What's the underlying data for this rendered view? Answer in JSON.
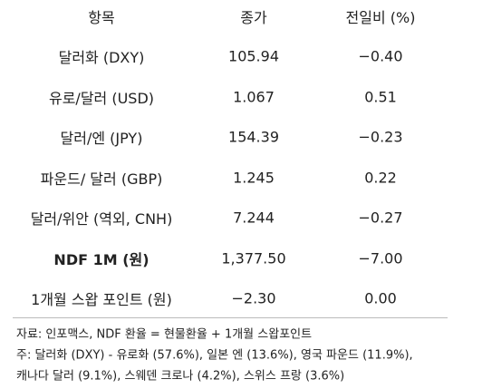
{
  "table": {
    "header": [
      "항목",
      "종가",
      "전일비 (%)"
    ],
    "rows": [
      [
        "달러화 (DXY)",
        "105.94",
        "−0.40"
      ],
      [
        "유로/달러 (USD)",
        "1.067",
        "0.51"
      ],
      [
        "달러/엔 (JPY)",
        "154.39",
        "−0.23"
      ],
      [
        "파운드/ 달러 (GBP)",
        "1.245",
        "0.22"
      ],
      [
        "달러/위안 (역외, CNH)",
        "7.244",
        "−0.27"
      ],
      [
        "NDF 1M (원)",
        "1,377.50",
        "−7.00"
      ],
      [
        "1개월 스왑 포인트 (원)",
        "−2.30",
        "0.00"
      ]
    ]
  },
  "notes": [
    "자료: 인포맥스, NDF 환율 = 현물환율 + 1개월 스왑포인트",
    "주: 달러화 (DXY) - 유로화 (57.6%), 일본 엔 (13.6%), 영국 파운드 (11.9%),",
    "캐나다 달러 (9.1%), 스웨덴 크로나 (4.2%), 스위스 프랑 (3.6%)"
  ]
}
